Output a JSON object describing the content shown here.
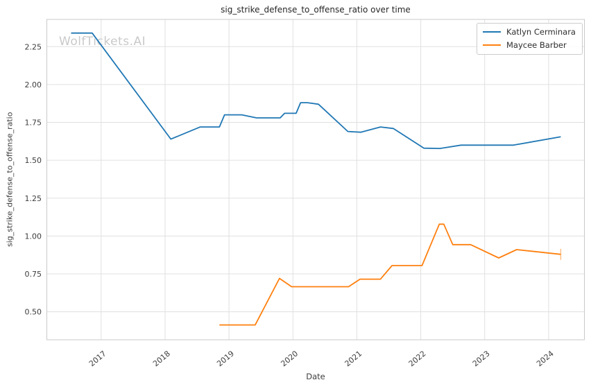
{
  "chart_data": {
    "type": "line",
    "title": "sig_strike_defense_to_offense_ratio over time",
    "xlabel": "Date",
    "ylabel": "sig_strike_defense_to_offense_ratio",
    "watermark": "WolfTickets.AI",
    "grid": true,
    "legend_position": "upper right",
    "axes": {
      "xlim": [
        2016.15,
        2024.56
      ],
      "ylim": [
        0.315,
        2.43
      ],
      "x_tick_values": [
        2017,
        2018,
        2019,
        2020,
        2021,
        2022,
        2023,
        2024
      ],
      "x_tick_labels": [
        "2017",
        "2018",
        "2019",
        "2020",
        "2021",
        "2022",
        "2023",
        "2024"
      ],
      "y_tick_values": [
        0.5,
        0.75,
        1.0,
        1.25,
        1.5,
        1.75,
        2.0,
        2.25
      ],
      "y_tick_labels": [
        "0.50",
        "0.75",
        "1.00",
        "1.25",
        "1.50",
        "1.75",
        "2.00",
        "2.25"
      ]
    },
    "colors": {
      "katlyn_cerminara": "#1f77b4",
      "maycee_barber": "#ff7f0e",
      "grid": "#e0e0e0",
      "spine": "#c9c9c9",
      "tick_text": "#3c3c3c",
      "watermark": "#c9c9c9"
    },
    "series": [
      {
        "name": "Katlyn Cerminara",
        "color": "#1f77b4",
        "end_cap": false,
        "points": [
          [
            2016.53,
            2.34
          ],
          [
            2016.86,
            2.34
          ],
          [
            2018.09,
            1.64
          ],
          [
            2018.55,
            1.72
          ],
          [
            2018.85,
            1.72
          ],
          [
            2018.93,
            1.8
          ],
          [
            2019.2,
            1.8
          ],
          [
            2019.43,
            1.78
          ],
          [
            2019.8,
            1.78
          ],
          [
            2019.87,
            1.81
          ],
          [
            2020.05,
            1.81
          ],
          [
            2020.12,
            1.88
          ],
          [
            2020.23,
            1.88
          ],
          [
            2020.4,
            1.87
          ],
          [
            2020.86,
            1.69
          ],
          [
            2021.06,
            1.685
          ],
          [
            2021.37,
            1.72
          ],
          [
            2021.57,
            1.71
          ],
          [
            2022.05,
            1.58
          ],
          [
            2022.3,
            1.578
          ],
          [
            2022.63,
            1.6
          ],
          [
            2023.45,
            1.6
          ],
          [
            2024.19,
            1.655
          ]
        ]
      },
      {
        "name": "Maycee Barber",
        "color": "#ff7f0e",
        "end_cap": true,
        "points": [
          [
            2018.85,
            0.413
          ],
          [
            2019.41,
            0.413
          ],
          [
            2019.79,
            0.72
          ],
          [
            2019.98,
            0.665
          ],
          [
            2020.87,
            0.665
          ],
          [
            2021.05,
            0.715
          ],
          [
            2021.37,
            0.715
          ],
          [
            2021.55,
            0.805
          ],
          [
            2022.02,
            0.805
          ],
          [
            2022.29,
            1.078
          ],
          [
            2022.36,
            1.078
          ],
          [
            2022.5,
            0.943
          ],
          [
            2022.78,
            0.943
          ],
          [
            2023.22,
            0.855
          ],
          [
            2023.5,
            0.91
          ],
          [
            2024.19,
            0.879
          ]
        ]
      }
    ]
  }
}
